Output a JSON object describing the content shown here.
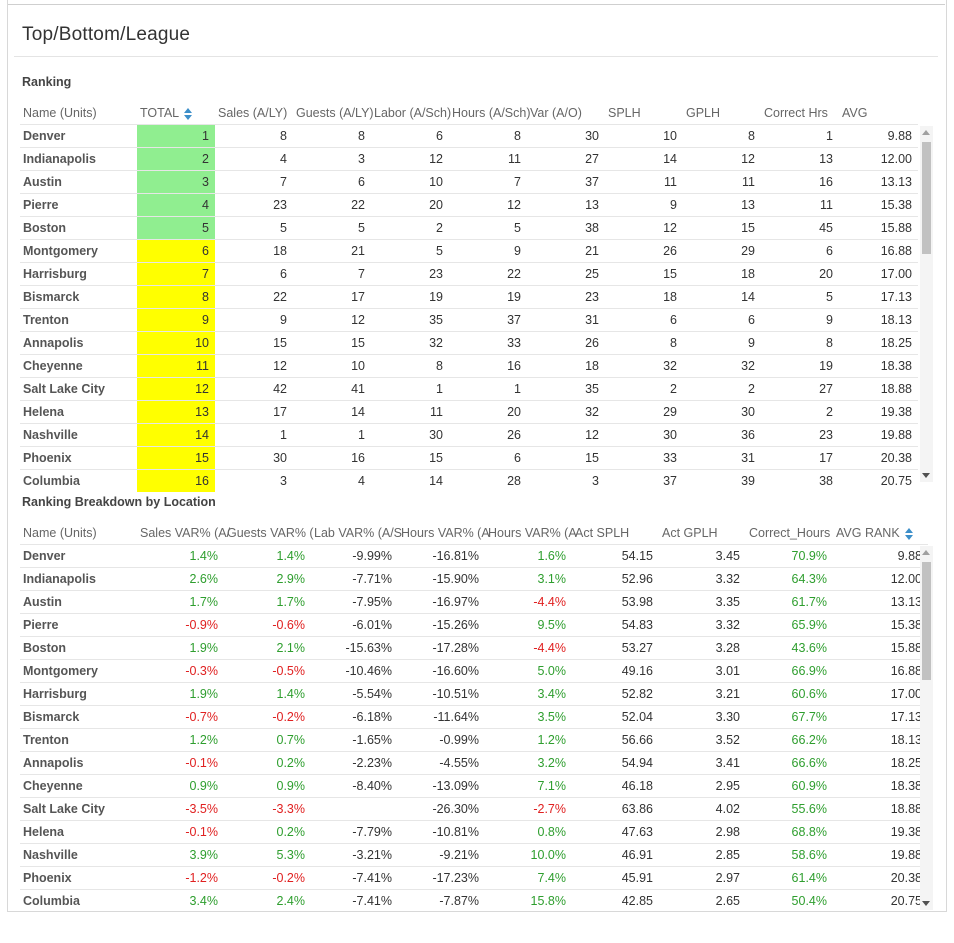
{
  "page": {
    "title": "Top/Bottom/League"
  },
  "ranking": {
    "section_title": "Ranking",
    "columns": [
      "Name (Units)",
      "TOTAL",
      "Sales (A/LY)",
      "Guests (A/LY)",
      "Labor (A/Sch)",
      "Hours (A/Sch)",
      "Var (A/O)",
      "SPLH",
      "GPLH",
      "Correct Hrs",
      "AVG"
    ],
    "rows": [
      [
        "Denver",
        "1",
        "8",
        "8",
        "6",
        "8",
        "30",
        "10",
        "8",
        "1",
        "9.88"
      ],
      [
        "Indianapolis",
        "2",
        "4",
        "3",
        "12",
        "11",
        "27",
        "14",
        "12",
        "13",
        "12.00"
      ],
      [
        "Austin",
        "3",
        "7",
        "6",
        "10",
        "7",
        "37",
        "11",
        "11",
        "16",
        "13.13"
      ],
      [
        "Pierre",
        "4",
        "23",
        "22",
        "20",
        "12",
        "13",
        "9",
        "13",
        "11",
        "15.38"
      ],
      [
        "Boston",
        "5",
        "5",
        "5",
        "2",
        "5",
        "38",
        "12",
        "15",
        "45",
        "15.88"
      ],
      [
        "Montgomery",
        "6",
        "18",
        "21",
        "5",
        "9",
        "21",
        "26",
        "29",
        "6",
        "16.88"
      ],
      [
        "Harrisburg",
        "7",
        "6",
        "7",
        "23",
        "22",
        "25",
        "15",
        "18",
        "20",
        "17.00"
      ],
      [
        "Bismarck",
        "8",
        "22",
        "17",
        "19",
        "19",
        "23",
        "18",
        "14",
        "5",
        "17.13"
      ],
      [
        "Trenton",
        "9",
        "9",
        "12",
        "35",
        "37",
        "31",
        "6",
        "6",
        "9",
        "18.13"
      ],
      [
        "Annapolis",
        "10",
        "15",
        "15",
        "32",
        "33",
        "26",
        "8",
        "9",
        "8",
        "18.25"
      ],
      [
        "Cheyenne",
        "11",
        "12",
        "10",
        "8",
        "16",
        "18",
        "32",
        "32",
        "19",
        "18.38"
      ],
      [
        "Salt Lake City",
        "12",
        "42",
        "41",
        "1",
        "1",
        "35",
        "2",
        "2",
        "27",
        "18.88"
      ],
      [
        "Helena",
        "13",
        "17",
        "14",
        "11",
        "20",
        "32",
        "29",
        "30",
        "2",
        "19.38"
      ],
      [
        "Nashville",
        "14",
        "1",
        "1",
        "30",
        "26",
        "12",
        "30",
        "36",
        "23",
        "19.88"
      ],
      [
        "Phoenix",
        "15",
        "30",
        "16",
        "15",
        "6",
        "15",
        "33",
        "31",
        "17",
        "20.38"
      ],
      [
        "Columbia",
        "16",
        "3",
        "4",
        "14",
        "28",
        "3",
        "37",
        "39",
        "38",
        "20.75"
      ]
    ],
    "total_colors": [
      "#90ee90",
      "#90ee90",
      "#90ee90",
      "#90ee90",
      "#90ee90",
      "#ffff00",
      "#ffff00",
      "#ffff00",
      "#ffff00",
      "#ffff00",
      "#ffff00",
      "#ffff00",
      "#ffff00",
      "#ffff00",
      "#ffff00",
      "#ffff00"
    ]
  },
  "breakdown": {
    "section_title": "Ranking Breakdown by Location",
    "columns": [
      "Name (Units)",
      "Sales VAR% (A/",
      "Guests VAR% (",
      "Lab VAR% (A/S",
      "Hours VAR% (A",
      "Hours VAR% (A",
      "Act SPLH",
      "Act GPLH",
      "Correct_Hours",
      "AVG RANK"
    ],
    "rows": [
      [
        "Denver",
        "1.4%",
        "1.4%",
        "-9.99%",
        "-16.81%",
        "1.6%",
        "54.15",
        "3.45",
        "70.9%",
        "9.88"
      ],
      [
        "Indianapolis",
        "2.6%",
        "2.9%",
        "-7.71%",
        "-15.90%",
        "3.1%",
        "52.96",
        "3.32",
        "64.3%",
        "12.00"
      ],
      [
        "Austin",
        "1.7%",
        "1.7%",
        "-7.95%",
        "-16.97%",
        "-4.4%",
        "53.98",
        "3.35",
        "61.7%",
        "13.13"
      ],
      [
        "Pierre",
        "-0.9%",
        "-0.6%",
        "-6.01%",
        "-15.26%",
        "9.5%",
        "54.83",
        "3.32",
        "65.9%",
        "15.38"
      ],
      [
        "Boston",
        "1.9%",
        "2.1%",
        "-15.63%",
        "-17.28%",
        "-4.4%",
        "53.27",
        "3.28",
        "43.6%",
        "15.88"
      ],
      [
        "Montgomery",
        "-0.3%",
        "-0.5%",
        "-10.46%",
        "-16.60%",
        "5.0%",
        "49.16",
        "3.01",
        "66.9%",
        "16.88"
      ],
      [
        "Harrisburg",
        "1.9%",
        "1.4%",
        "-5.54%",
        "-10.51%",
        "3.4%",
        "52.82",
        "3.21",
        "60.6%",
        "17.00"
      ],
      [
        "Bismarck",
        "-0.7%",
        "-0.2%",
        "-6.18%",
        "-11.64%",
        "3.5%",
        "52.04",
        "3.30",
        "67.7%",
        "17.13"
      ],
      [
        "Trenton",
        "1.2%",
        "0.7%",
        "-1.65%",
        "-0.99%",
        "1.2%",
        "56.66",
        "3.52",
        "66.2%",
        "18.13"
      ],
      [
        "Annapolis",
        "-0.1%",
        "0.2%",
        "-2.23%",
        "-4.55%",
        "3.2%",
        "54.94",
        "3.41",
        "66.6%",
        "18.25"
      ],
      [
        "Cheyenne",
        "0.9%",
        "0.9%",
        "-8.40%",
        "-13.09%",
        "7.1%",
        "46.18",
        "2.95",
        "60.9%",
        "18.38"
      ],
      [
        "Salt Lake City",
        "-3.5%",
        "-3.3%",
        "",
        "-26.30%",
        "-2.7%",
        "63.86",
        "4.02",
        "55.6%",
        "18.88"
      ],
      [
        "Helena",
        "-0.1%",
        "0.2%",
        "-7.79%",
        "-10.81%",
        "0.8%",
        "47.63",
        "2.98",
        "68.8%",
        "19.38"
      ],
      [
        "Nashville",
        "3.9%",
        "5.3%",
        "-3.21%",
        "-9.21%",
        "10.0%",
        "46.91",
        "2.85",
        "58.6%",
        "19.88"
      ],
      [
        "Phoenix",
        "-1.2%",
        "-0.2%",
        "-7.41%",
        "-17.23%",
        "7.4%",
        "45.91",
        "2.97",
        "61.4%",
        "20.38"
      ],
      [
        "Columbia",
        "3.4%",
        "2.4%",
        "-7.41%",
        "-7.87%",
        "15.8%",
        "42.85",
        "2.65",
        "50.4%",
        "20.75"
      ]
    ],
    "colored_columns": [
      1,
      2,
      5,
      8
    ],
    "colors": {
      "positive": "#2e9e2e",
      "negative": "#e02020"
    }
  }
}
